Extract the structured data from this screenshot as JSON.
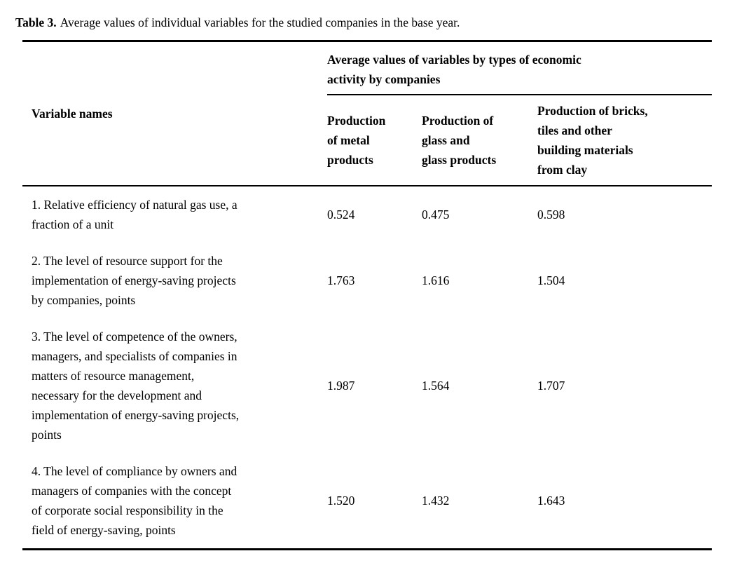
{
  "caption": {
    "label": "Table 3.",
    "text": "Average values of individual variables for the studied companies in the base year."
  },
  "table": {
    "span_header": "Average values of variables by types of economic\nactivity by companies",
    "variable_names_header": "Variable names",
    "column_headers": [
      "Production\nof metal\nproducts",
      "Production of\nglass and\nglass products",
      "Production of bricks,\ntiles and other\nbuilding materials\nfrom clay"
    ],
    "rows": [
      {
        "name": "1. Relative efficiency of natural gas use, a\nfraction of a unit",
        "values": [
          "0.524",
          "0.475",
          "0.598"
        ]
      },
      {
        "name": "2. The level of resource support for the\nimplementation of energy-saving projects\nby companies, points",
        "values": [
          "1.763",
          "1.616",
          "1.504"
        ]
      },
      {
        "name": "3. The level of competence of the owners,\nmanagers, and specialists of companies in\nmatters of resource management,\nnecessary for the development and\nimplementation of energy-saving projects,\npoints",
        "values": [
          "1.987",
          "1.564",
          "1.707"
        ]
      },
      {
        "name": "4. The level of compliance by owners and\nmanagers of companies with the concept\nof corporate social responsibility in the\nfield of energy-saving, points",
        "values": [
          "1.520",
          "1.432",
          "1.643"
        ]
      }
    ]
  },
  "colors": {
    "text": "#000000",
    "background": "#ffffff",
    "rule": "#000000"
  },
  "chart_data": {
    "type": "table",
    "title": "Table 3. Average values of individual variables for the studied companies in the base year.",
    "column_group_header": "Average values of variables by types of economic activity by companies",
    "columns": [
      "Variable names",
      "Production of metal products",
      "Production of glass and glass products",
      "Production of bricks, tiles and other building materials from clay"
    ],
    "rows": [
      [
        "1. Relative efficiency of natural gas use, a fraction of a unit",
        0.524,
        0.475,
        0.598
      ],
      [
        "2. The level of resource support for the implementation of energy-saving projects by companies, points",
        1.763,
        1.616,
        1.504
      ],
      [
        "3. The level of competence of the owners, managers, and specialists of companies in matters of resource management, necessary for the development and implementation of energy-saving projects, points",
        1.987,
        1.564,
        1.707
      ],
      [
        "4. The level of compliance by owners and managers of companies with the concept of corporate social responsibility in the field of energy-saving, points",
        1.52,
        1.432,
        1.643
      ]
    ]
  }
}
